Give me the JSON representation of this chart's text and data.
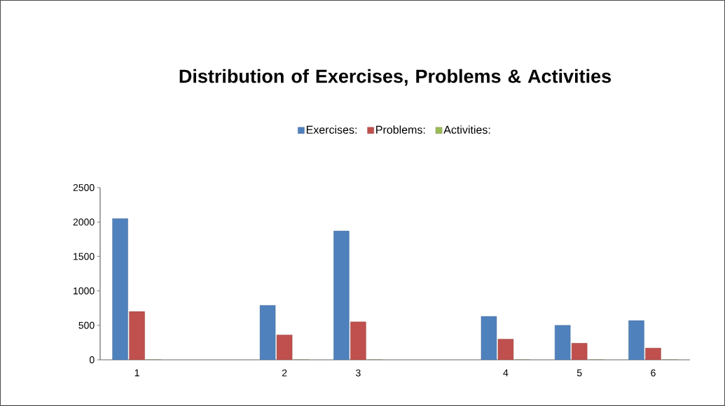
{
  "chart_data": {
    "type": "bar",
    "title": "Distribution of Exercises, Problems & Activities",
    "categories": [
      "1",
      null,
      "2",
      "3",
      null,
      "4",
      "5",
      "6"
    ],
    "series": [
      {
        "name": "Exercises:",
        "color": "#4f81bd",
        "values": [
          2050,
          null,
          790,
          1870,
          null,
          630,
          500,
          570
        ]
      },
      {
        "name": "Problems:",
        "color": "#c0504d",
        "values": [
          700,
          null,
          360,
          550,
          null,
          300,
          240,
          170
        ]
      },
      {
        "name": "Activities:",
        "color": "#9bbb59",
        "values": [
          0,
          null,
          0,
          0,
          null,
          0,
          0,
          0
        ]
      }
    ],
    "ylim": [
      0,
      2500
    ],
    "yticks": [
      0,
      500,
      1000,
      1500,
      2000,
      2500
    ],
    "grid": false,
    "legend": "top"
  }
}
